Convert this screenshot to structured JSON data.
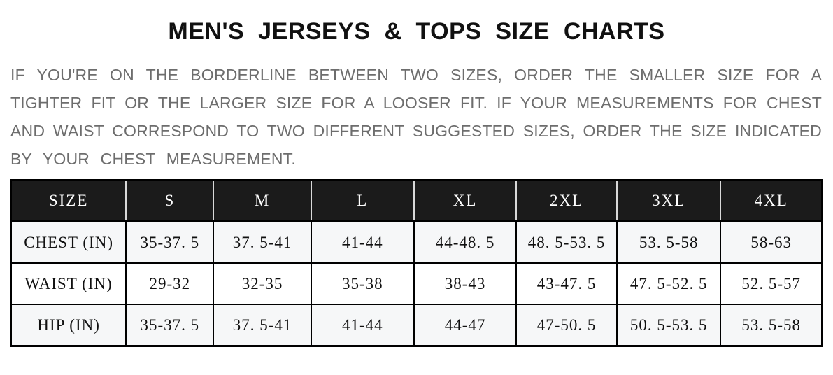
{
  "page": {
    "title": "MEN'S JERSEYS & TOPS SIZE CHARTS"
  },
  "intro": {
    "lines": [
      "IF YOU'RE ON THE BORDERLINE BETWEEN TWO SIZES, ORDER THE SMALLER SIZE FOR A",
      "TIGHTER FIT OR THE LARGER SIZE FOR A LOOSER FIT. IF YOUR MEASUREMENTS FOR CHEST",
      "AND WAIST CORRESPOND TO TWO DIFFERENT SUGGESTED SIZES, ORDER THE SIZE INDICATED",
      "BY YOUR CHEST MEASUREMENT."
    ]
  },
  "size_chart": {
    "columns": [
      "SIZE",
      "S",
      "M",
      "L",
      "XL",
      "2XL",
      "3XL",
      "4XL"
    ],
    "column_widths": [
      "14.2%",
      "10.8%",
      "12.0%",
      "12.7%",
      "12.6%",
      "12.4%",
      "12.8%",
      "12.5%"
    ],
    "rows": [
      {
        "label": "CHEST (IN)",
        "values": [
          "35-37. 5",
          "37. 5-41",
          "41-44",
          "44-48. 5",
          "48. 5-53. 5",
          "53. 5-58",
          "58-63"
        ]
      },
      {
        "label": "WAIST (IN)",
        "values": [
          "29-32",
          "32-35",
          "35-38",
          "38-43",
          "43-47. 5",
          "47. 5-52. 5",
          "52. 5-57"
        ]
      },
      {
        "label": "HIP (IN)",
        "values": [
          "35-37. 5",
          "37. 5-41",
          "41-44",
          "44-47",
          "47-50. 5",
          "50. 5-53. 5",
          "53. 5-58"
        ]
      }
    ],
    "colors": {
      "header_bg": "#1b1b1b",
      "header_text": "#ffffff",
      "border": "#000000",
      "alt_row_bg": "#f6f7f8",
      "body_text": "#101010",
      "intro_text": "#6d6d6d",
      "title_text": "#111111"
    }
  }
}
